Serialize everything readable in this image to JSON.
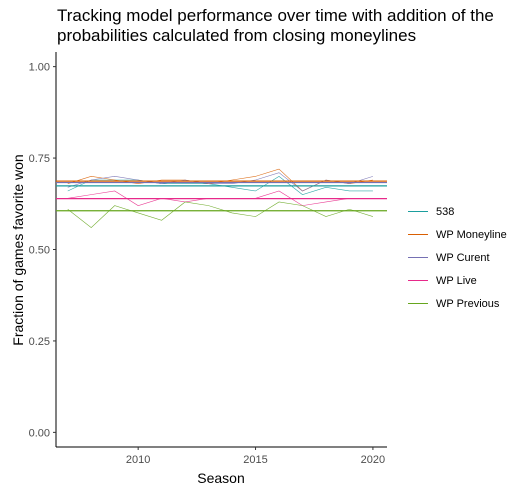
{
  "chart_data": {
    "type": "line",
    "title_line1": "Tracking model performance over time with addition of the",
    "title_line2": "probabilities calculated from closing moneylines",
    "xlabel": "Season",
    "ylabel": "Fraction of games favorite won",
    "xlim": [
      2006.5,
      2020.6
    ],
    "ylim": [
      -0.04,
      1.04
    ],
    "x_ticks": [
      2010,
      2015,
      2020
    ],
    "y_ticks": [
      0.0,
      0.25,
      0.5,
      0.75,
      1.0
    ],
    "y_tick_labels": [
      "0.00",
      "0.25",
      "0.50",
      "0.75",
      "1.00"
    ],
    "grid": false,
    "legend_position": "right",
    "x": [
      2007,
      2008,
      2009,
      2010,
      2011,
      2012,
      2013,
      2014,
      2015,
      2016,
      2017,
      2018,
      2019,
      2020
    ],
    "series": [
      {
        "name": "538",
        "color": "#1b9e9e",
        "values": [
          0.66,
          0.69,
          0.69,
          0.69,
          0.68,
          0.68,
          0.68,
          0.67,
          0.66,
          0.7,
          0.65,
          0.67,
          0.66,
          0.66
        ],
        "mean": 0.674
      },
      {
        "name": "WP Moneyline",
        "color": "#d95f02",
        "values": [
          0.68,
          0.7,
          0.69,
          0.68,
          0.69,
          0.69,
          0.68,
          0.69,
          0.7,
          0.72,
          0.66,
          0.69,
          0.68,
          0.69
        ],
        "mean": 0.687
      },
      {
        "name": "WP Curent",
        "color": "#7570b3",
        "values": [
          0.67,
          0.69,
          0.7,
          0.69,
          0.68,
          0.69,
          0.68,
          0.68,
          0.69,
          0.71,
          0.66,
          0.69,
          0.68,
          0.7
        ],
        "mean": 0.683
      },
      {
        "name": "WP Live",
        "color": "#e7298a",
        "values": [
          0.64,
          0.65,
          0.66,
          0.62,
          0.64,
          0.63,
          0.64,
          0.64,
          0.64,
          0.66,
          0.62,
          0.63,
          0.64,
          0.64
        ],
        "mean": 0.639
      },
      {
        "name": "WP Previous",
        "color": "#66a61e",
        "values": [
          0.61,
          0.56,
          0.62,
          0.6,
          0.58,
          0.63,
          0.62,
          0.6,
          0.59,
          0.63,
          0.62,
          0.59,
          0.61,
          0.59
        ],
        "mean": 0.606
      }
    ]
  }
}
